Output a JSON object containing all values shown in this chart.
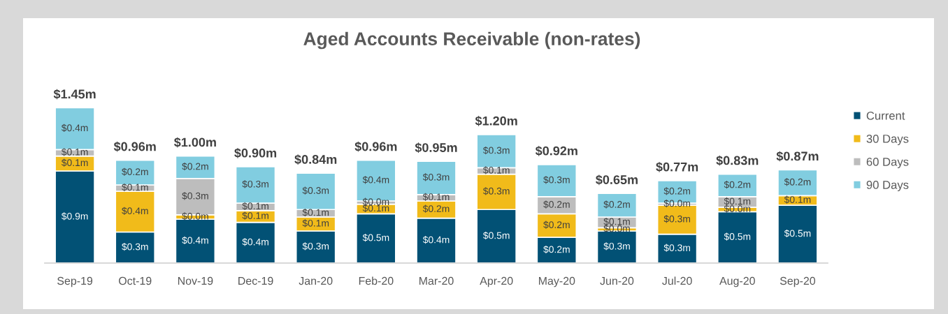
{
  "chart_data": {
    "type": "bar",
    "title": "Aged Accounts Receivable (non-rates)",
    "categories": [
      "Sep-19",
      "Oct-19",
      "Nov-19",
      "Dec-19",
      "Jan-20",
      "Feb-20",
      "Mar-20",
      "Apr-20",
      "May-20",
      "Jun-20",
      "Jul-20",
      "Aug-20",
      "Sep-20"
    ],
    "stacked": true,
    "tick_labels": "x",
    "legend": "right",
    "series": [
      {
        "name": "Current",
        "color": "#025175",
        "values": [
          0.86,
          0.29,
          0.41,
          0.38,
          0.3,
          0.46,
          0.42,
          0.5,
          0.24,
          0.3,
          0.27,
          0.48,
          0.54
        ],
        "value_labels": [
          "$0.9m",
          "$0.3m",
          "$0.4m",
          "$0.4m",
          "$0.3m",
          "$0.5m",
          "$0.4m",
          "$0.5m",
          "$0.2m",
          "$0.3m",
          "$0.3m",
          "$0.5m",
          "$0.5m"
        ]
      },
      {
        "name": "30 Days",
        "color": "#f1bb1a",
        "values": [
          0.14,
          0.38,
          0.04,
          0.11,
          0.13,
          0.09,
          0.16,
          0.33,
          0.22,
          0.03,
          0.27,
          0.04,
          0.09
        ],
        "value_labels": [
          "$0.1m",
          "$0.4m",
          "$0.0m",
          "$0.1m",
          "$0.1m",
          "$0.1m",
          "$0.2m",
          "$0.3m",
          "$0.2m",
          "$0.0m",
          "$0.3m",
          "$0.0m",
          "$0.1m"
        ]
      },
      {
        "name": "60 Days",
        "color": "#bdbdbd",
        "values": [
          0.06,
          0.06,
          0.34,
          0.07,
          0.07,
          0.03,
          0.06,
          0.06,
          0.16,
          0.1,
          0.02,
          0.1,
          null
        ],
        "value_labels": [
          "$0.1m",
          "$0.1m",
          "$0.3m",
          "$0.1m",
          "$0.1m",
          "$0.0m",
          "$0.1m",
          "$0.1m",
          "$0.2m",
          "$0.1m",
          "$0.0m",
          "$0.1m",
          null
        ]
      },
      {
        "name": "90 Days",
        "color": "#81cde0",
        "values": [
          0.39,
          0.23,
          0.21,
          0.34,
          0.34,
          0.38,
          0.31,
          0.31,
          0.3,
          0.22,
          0.21,
          0.21,
          0.24
        ],
        "value_labels": [
          "$0.4m",
          "$0.2m",
          "$0.2m",
          "$0.3m",
          "$0.3m",
          "$0.4m",
          "$0.3m",
          "$0.3m",
          "$0.3m",
          "$0.2m",
          "$0.2m",
          "$0.2m",
          "$0.2m"
        ]
      }
    ],
    "totals": [
      "$1.45m",
      "$0.96m",
      "$1.00m",
      "$0.90m",
      "$0.84m",
      "$0.96m",
      "$0.95m",
      "$1.20m",
      "$0.92m",
      "$0.65m",
      "$0.77m",
      "$0.83m",
      "$0.87m"
    ]
  }
}
